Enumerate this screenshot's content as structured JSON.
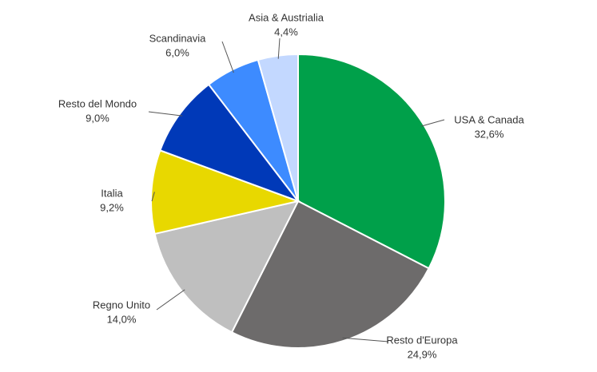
{
  "chart_data": {
    "type": "pie",
    "categories": [
      "USA & Canada",
      "Resto d'Europa",
      "Regno Unito",
      "Italia",
      "Resto del Mondo",
      "Scandinavia",
      "Asia & Austrialia"
    ],
    "values": [
      32.6,
      24.9,
      14.0,
      9.2,
      9.0,
      6.0,
      4.4
    ],
    "value_labels": [
      "32,6%",
      "24,9%",
      "14,0%",
      "9,2%",
      "9,0%",
      "6,0%",
      "4,4%"
    ],
    "colors": [
      "#00a04a",
      "#6d6b6b",
      "#bfbfbf",
      "#e8d800",
      "#0039b8",
      "#3d8bff",
      "#c3d8ff"
    ]
  }
}
